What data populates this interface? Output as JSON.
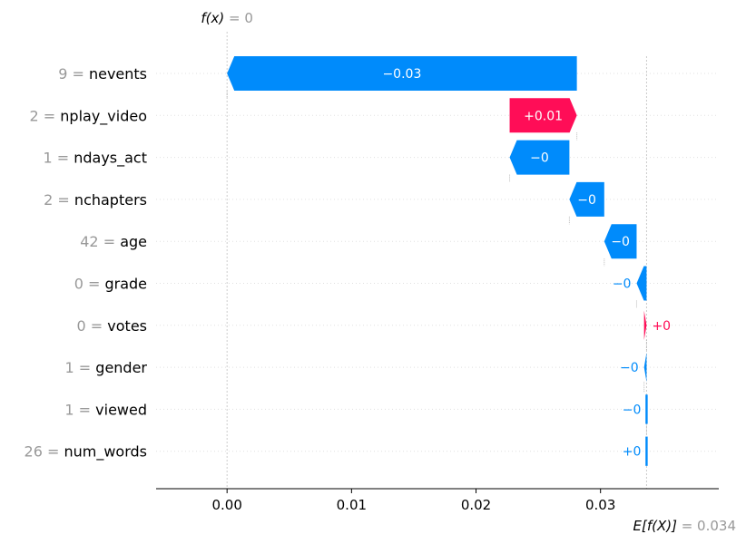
{
  "chart_data": {
    "type": "waterfall",
    "fx_label": "f(x)",
    "fx_value": "0",
    "base_label": "E[f(X)]",
    "base_value": "0.034",
    "base": 0.0337,
    "final": 0.0,
    "xlim": [
      -0.0057,
      0.0395
    ],
    "xticks": [
      {
        "value": 0.0,
        "label": "0.00"
      },
      {
        "value": 0.01,
        "label": "0.01"
      },
      {
        "value": 0.02,
        "label": "0.02"
      },
      {
        "value": 0.03,
        "label": "0.03"
      }
    ],
    "features": [
      {
        "value": "9",
        "name": "nevents",
        "start": 0.0281,
        "end": 0.0,
        "label": "−0.03"
      },
      {
        "value": "2",
        "name": "nplay_video",
        "start": 0.0227,
        "end": 0.0281,
        "label": "+0.01"
      },
      {
        "value": "1",
        "name": "ndays_act",
        "start": 0.0275,
        "end": 0.0227,
        "label": "−0"
      },
      {
        "value": "2",
        "name": "nchapters",
        "start": 0.0303,
        "end": 0.0275,
        "label": "−0"
      },
      {
        "value": "42",
        "name": "age",
        "start": 0.0329,
        "end": 0.0303,
        "label": "−0"
      },
      {
        "value": "0",
        "name": "grade",
        "start": 0.0337,
        "end": 0.0329,
        "label": "−0"
      },
      {
        "value": "0",
        "name": "votes",
        "start": 0.0335,
        "end": 0.0337,
        "label": "+0"
      },
      {
        "value": "1",
        "name": "gender",
        "start": 0.0337,
        "end": 0.0335,
        "label": "−0"
      },
      {
        "value": "1",
        "name": "viewed",
        "start": 0.0337,
        "end": 0.0337,
        "label": "−0"
      },
      {
        "value": "26",
        "name": "num_words",
        "start": 0.0337,
        "end": 0.0337,
        "label": "+0"
      }
    ],
    "colors": {
      "positive": "#ff0d57",
      "negative": "#008bfb",
      "label_gray": "#999999",
      "grid": "#e0e0e0"
    }
  }
}
